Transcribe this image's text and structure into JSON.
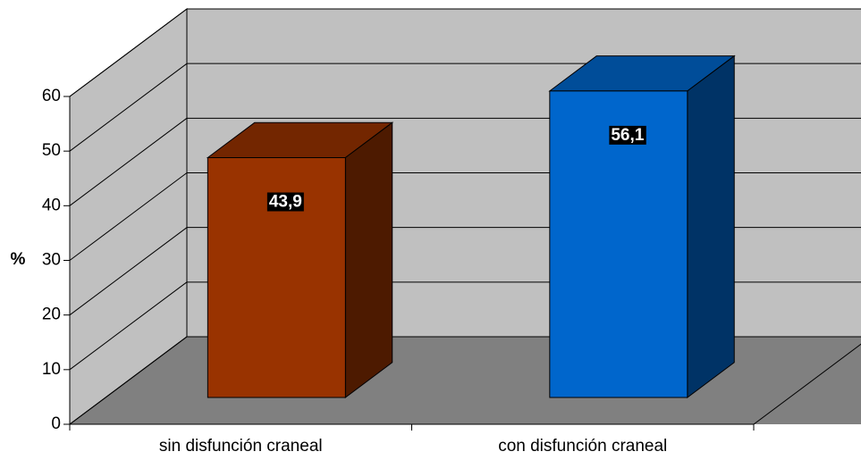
{
  "chart_data": {
    "type": "bar3d",
    "y_label": "%",
    "categories": [
      "sin disfunción craneal",
      "con disfunción craneal"
    ],
    "values": [
      43.9,
      56.1
    ],
    "value_labels": [
      "43,9",
      "56,1"
    ],
    "colors": [
      "#993300",
      "#0066cc"
    ],
    "ylim": [
      0,
      60
    ],
    "yticks": [
      0,
      10,
      20,
      30,
      40,
      50,
      60
    ],
    "grid": true
  }
}
